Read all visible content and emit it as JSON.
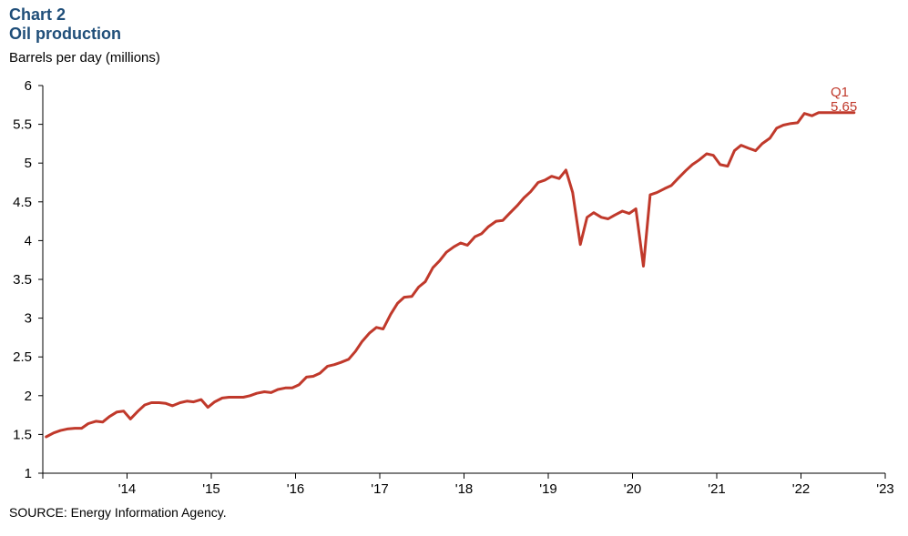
{
  "header": {
    "chart_label": "Chart 2",
    "title": "Oil production"
  },
  "footer": {
    "source": "SOURCE: Energy Information Agency."
  },
  "annotation": {
    "label": "Q1",
    "value": "5.65"
  },
  "colors": {
    "line": "#c0392b",
    "title": "#1f4e79",
    "axis": "#000000"
  },
  "chart_data": {
    "type": "line",
    "title": "Oil production",
    "ylabel": "Barrels per day (millions)",
    "xlabel": "",
    "ylim": [
      1,
      6
    ],
    "yticks": [
      1,
      1.5,
      2,
      2.5,
      3,
      3.5,
      4,
      4.5,
      5,
      5.5,
      6
    ],
    "ytick_labels": [
      "1",
      "1.5",
      "2",
      "2.5",
      "3",
      "3.5",
      "4",
      "4.5",
      "5",
      "5.5",
      "6"
    ],
    "xlim": [
      2013.5,
      2023.5
    ],
    "xtick_labels": [
      "'14",
      "'15",
      "'16",
      "'17",
      "'18",
      "'19",
      "'20",
      "'21",
      "'22",
      "'23"
    ],
    "grid": false,
    "legend": "none",
    "series": [
      {
        "x": [
          2013.54,
          2013.63,
          2013.71,
          2013.79,
          2013.88,
          2013.96,
          2014.04,
          2014.13,
          2014.21,
          2014.29,
          2014.38,
          2014.46,
          2014.54,
          2014.63,
          2014.71,
          2014.79,
          2014.88,
          2014.96,
          2015.04,
          2015.13,
          2015.21,
          2015.29,
          2015.38,
          2015.46,
          2015.54,
          2015.63,
          2015.71,
          2015.79,
          2015.88,
          2015.96,
          2016.04,
          2016.13,
          2016.21,
          2016.29,
          2016.38,
          2016.46,
          2016.54,
          2016.63,
          2016.71,
          2016.79,
          2016.88,
          2016.96,
          2017.04,
          2017.13,
          2017.21,
          2017.29,
          2017.38,
          2017.46,
          2017.54,
          2017.63,
          2017.71,
          2017.79,
          2017.88,
          2017.96,
          2018.04,
          2018.13,
          2018.21,
          2018.29,
          2018.38,
          2018.46,
          2018.54,
          2018.63,
          2018.71,
          2018.79,
          2018.88,
          2018.96,
          2019.04,
          2019.13,
          2019.21,
          2019.29,
          2019.38,
          2019.46,
          2019.54,
          2019.63,
          2019.71,
          2019.79,
          2019.88,
          2019.96,
          2020.04,
          2020.13,
          2020.21,
          2020.29,
          2020.38,
          2020.46,
          2020.54,
          2020.63,
          2020.71,
          2020.79,
          2020.88,
          2020.96,
          2021.04,
          2021.13,
          2021.21,
          2021.29,
          2021.38,
          2021.46,
          2021.54,
          2021.63,
          2021.71,
          2021.79,
          2021.88,
          2021.96,
          2022.04,
          2022.13,
          2022.21,
          2022.29,
          2022.38,
          2022.46,
          2022.54,
          2022.63,
          2022.71,
          2022.79,
          2022.88,
          2022.96,
          2023.04,
          2023.13
        ],
        "y": [
          1.47,
          1.52,
          1.55,
          1.57,
          1.58,
          1.58,
          1.64,
          1.67,
          1.66,
          1.73,
          1.79,
          1.8,
          1.7,
          1.8,
          1.88,
          1.91,
          1.91,
          1.9,
          1.87,
          1.91,
          1.93,
          1.92,
          1.95,
          1.85,
          1.92,
          1.97,
          1.98,
          1.98,
          1.98,
          2.0,
          2.03,
          2.05,
          2.04,
          2.08,
          2.1,
          2.1,
          2.14,
          2.24,
          2.25,
          2.29,
          2.38,
          2.4,
          2.43,
          2.47,
          2.57,
          2.7,
          2.81,
          2.88,
          2.86,
          3.05,
          3.19,
          3.27,
          3.28,
          3.4,
          3.47,
          3.65,
          3.74,
          3.85,
          3.92,
          3.97,
          3.94,
          4.05,
          4.09,
          4.18,
          4.25,
          4.26,
          4.35,
          4.45,
          4.55,
          4.63,
          4.75,
          4.78,
          4.83,
          4.8,
          4.91,
          4.62,
          3.95,
          4.3,
          4.36,
          4.3,
          4.28,
          4.33,
          4.38,
          4.35,
          4.41,
          3.67,
          4.59,
          4.62,
          4.67,
          4.71,
          4.8,
          4.9,
          4.98,
          5.04,
          5.12,
          5.1,
          4.98,
          4.96,
          5.16,
          5.23,
          5.19,
          5.16,
          5.25,
          5.32,
          5.45,
          5.49,
          5.51,
          5.52,
          5.64,
          5.61,
          5.65,
          5.65,
          5.65,
          5.65,
          5.65,
          5.65
        ]
      }
    ]
  }
}
